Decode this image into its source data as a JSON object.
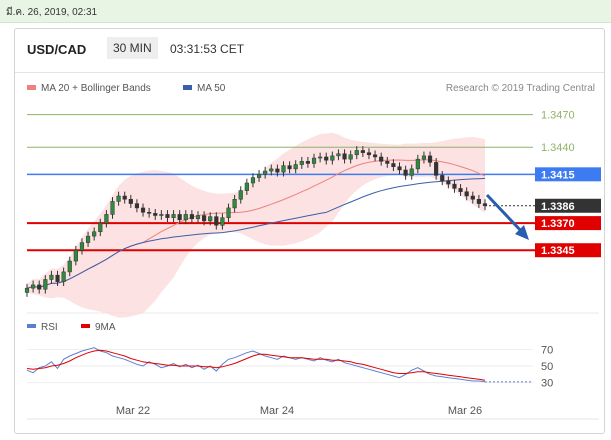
{
  "topbar": {
    "date": "มี.ค. 26, 2019, 02:31"
  },
  "header": {
    "pair": "USD/CAD",
    "interval": "30 MIN",
    "time": "03:31:53 CET"
  },
  "chart_data": {
    "type": "candlestick",
    "title": "USD/CAD",
    "legend": [
      {
        "name": "MA 20 + Bollinger Bands",
        "color": "#f08080"
      },
      {
        "name": "MA 50",
        "color": "#3b5fa8"
      }
    ],
    "copyright": "Research © 2019 Trading Central",
    "x_ticks": [
      "Mar 22",
      "Mar 24",
      "Mar 26"
    ],
    "ylim": [
      1.33,
      1.349
    ],
    "price_levels": [
      {
        "value": 1.347,
        "label": "1.3470",
        "kind": "resistance-minor",
        "color": "#8fb36a"
      },
      {
        "value": 1.344,
        "label": "1.3440",
        "kind": "resistance-minor",
        "color": "#8fb36a"
      },
      {
        "value": 1.3415,
        "label": "1.3415",
        "kind": "pivot",
        "color": "#3d7bf2"
      },
      {
        "value": 1.3386,
        "label": "1.3386",
        "kind": "last-price",
        "color": "#333333"
      },
      {
        "value": 1.337,
        "label": "1.3370",
        "kind": "support",
        "color": "#e00000"
      },
      {
        "value": 1.3345,
        "label": "1.3345",
        "kind": "support",
        "color": "#e00000"
      }
    ],
    "close_series": [
      1.331,
      1.3313,
      1.3309,
      1.3318,
      1.3322,
      1.3316,
      1.3325,
      1.3335,
      1.3345,
      1.3352,
      1.3358,
      1.3362,
      1.337,
      1.3378,
      1.339,
      1.3395,
      1.3392,
      1.3388,
      1.3384,
      1.338,
      1.3379,
      1.3377,
      1.3378,
      1.3375,
      1.3378,
      1.3373,
      1.3378,
      1.3374,
      1.3377,
      1.3372,
      1.3376,
      1.3368,
      1.3375,
      1.3384,
      1.3392,
      1.34,
      1.3407,
      1.3412,
      1.3415,
      1.3418,
      1.342,
      1.3417,
      1.3423,
      1.342,
      1.3424,
      1.3427,
      1.3425,
      1.343,
      1.3431,
      1.3428,
      1.3432,
      1.3434,
      1.3429,
      1.3433,
      1.3437,
      1.3435,
      1.3433,
      1.3431,
      1.3427,
      1.3425,
      1.3422,
      1.3419,
      1.3414,
      1.342,
      1.3429,
      1.3432,
      1.3426,
      1.3414,
      1.3409,
      1.3406,
      1.3402,
      1.3399,
      1.3395,
      1.3392,
      1.3388,
      1.3386
    ],
    "rsi_panel": {
      "legend": [
        {
          "name": "RSI",
          "color": "#5b7fd0"
        },
        {
          "name": "9MA",
          "color": "#e00000"
        }
      ],
      "ylim": [
        20,
        80
      ],
      "ticks": [
        30,
        50,
        70
      ],
      "rsi": [
        45,
        42,
        48,
        50,
        55,
        47,
        58,
        62,
        65,
        68,
        70,
        72,
        68,
        66,
        62,
        60,
        58,
        55,
        52,
        50,
        55,
        52,
        48,
        50,
        53,
        49,
        52,
        48,
        51,
        46,
        50,
        44,
        52,
        58,
        60,
        63,
        66,
        68,
        65,
        62,
        60,
        58,
        62,
        60,
        58,
        60,
        58,
        56,
        60,
        57,
        55,
        58,
        54,
        52,
        50,
        48,
        46,
        44,
        42,
        40,
        38,
        36,
        40,
        45,
        48,
        44,
        40,
        38,
        37,
        36,
        35,
        34,
        33,
        32,
        32,
        31
      ],
      "ma9": [
        47,
        46,
        47,
        48,
        50,
        51,
        53,
        56,
        60,
        63,
        66,
        68,
        69,
        68,
        66,
        64,
        62,
        59,
        57,
        55,
        54,
        53,
        52,
        51,
        51,
        50,
        50,
        50,
        50,
        49,
        49,
        48,
        49,
        51,
        53,
        56,
        59,
        62,
        64,
        64,
        63,
        62,
        61,
        60,
        60,
        60,
        59,
        58,
        58,
        58,
        57,
        57,
        56,
        55,
        53,
        52,
        50,
        48,
        46,
        44,
        42,
        41,
        41,
        42,
        43,
        43,
        42,
        41,
        40,
        39,
        38,
        37,
        36,
        35,
        34,
        33
      ]
    }
  }
}
